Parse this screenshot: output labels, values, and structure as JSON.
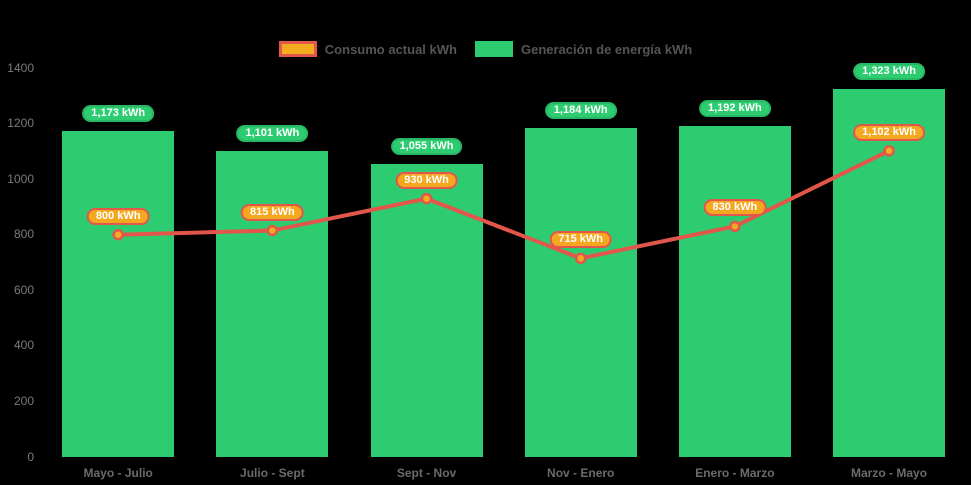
{
  "background": "#000000",
  "legend": {
    "position": "top-center",
    "consumo_swatch_fill": "#f3ab20",
    "consumo_swatch_border": "#e2564c",
    "generacion_swatch_fill": "#2ecc71"
  },
  "chart_data": {
    "type": "bar",
    "subtype": "bar-with-line-overlay",
    "title": "",
    "xlabel": "",
    "ylabel": "",
    "categories": [
      "Mayo - Julio",
      "Julio - Sept",
      "Sept - Nov",
      "Nov - Enero",
      "Enero - Marzo",
      "Marzo - Mayo"
    ],
    "series": [
      {
        "name": "Consumo actual kWh",
        "type": "line",
        "values": [
          800,
          815,
          930,
          715,
          830,
          1102
        ],
        "labels": [
          "800 kWh",
          "815 kWh",
          "930 kWh",
          "715 kWh",
          "830 kWh",
          "1,102 kWh"
        ],
        "color": "#e2564c",
        "point_fill": "#f3ab20",
        "label_bg": "#f3a81f",
        "label_border": "#e2564c"
      },
      {
        "name": "Generación de energía kWh",
        "type": "bar",
        "values": [
          1173,
          1101,
          1055,
          1184,
          1192,
          1323
        ],
        "labels": [
          "1,173 kWh",
          "1,101 kWh",
          "1,055 kWh",
          "1,184 kWh",
          "1,192 kWh",
          "1,323 kWh"
        ],
        "color": "#2ecc71",
        "label_bg": "#2ecc71",
        "label_border": "#28b865"
      }
    ],
    "ylim": [
      0,
      1400
    ],
    "yticks": [
      0,
      200,
      400,
      600,
      800,
      1000,
      1200,
      1400
    ],
    "grid": false,
    "legend_position": "top",
    "axis_text_color": "#7a7a7a"
  }
}
